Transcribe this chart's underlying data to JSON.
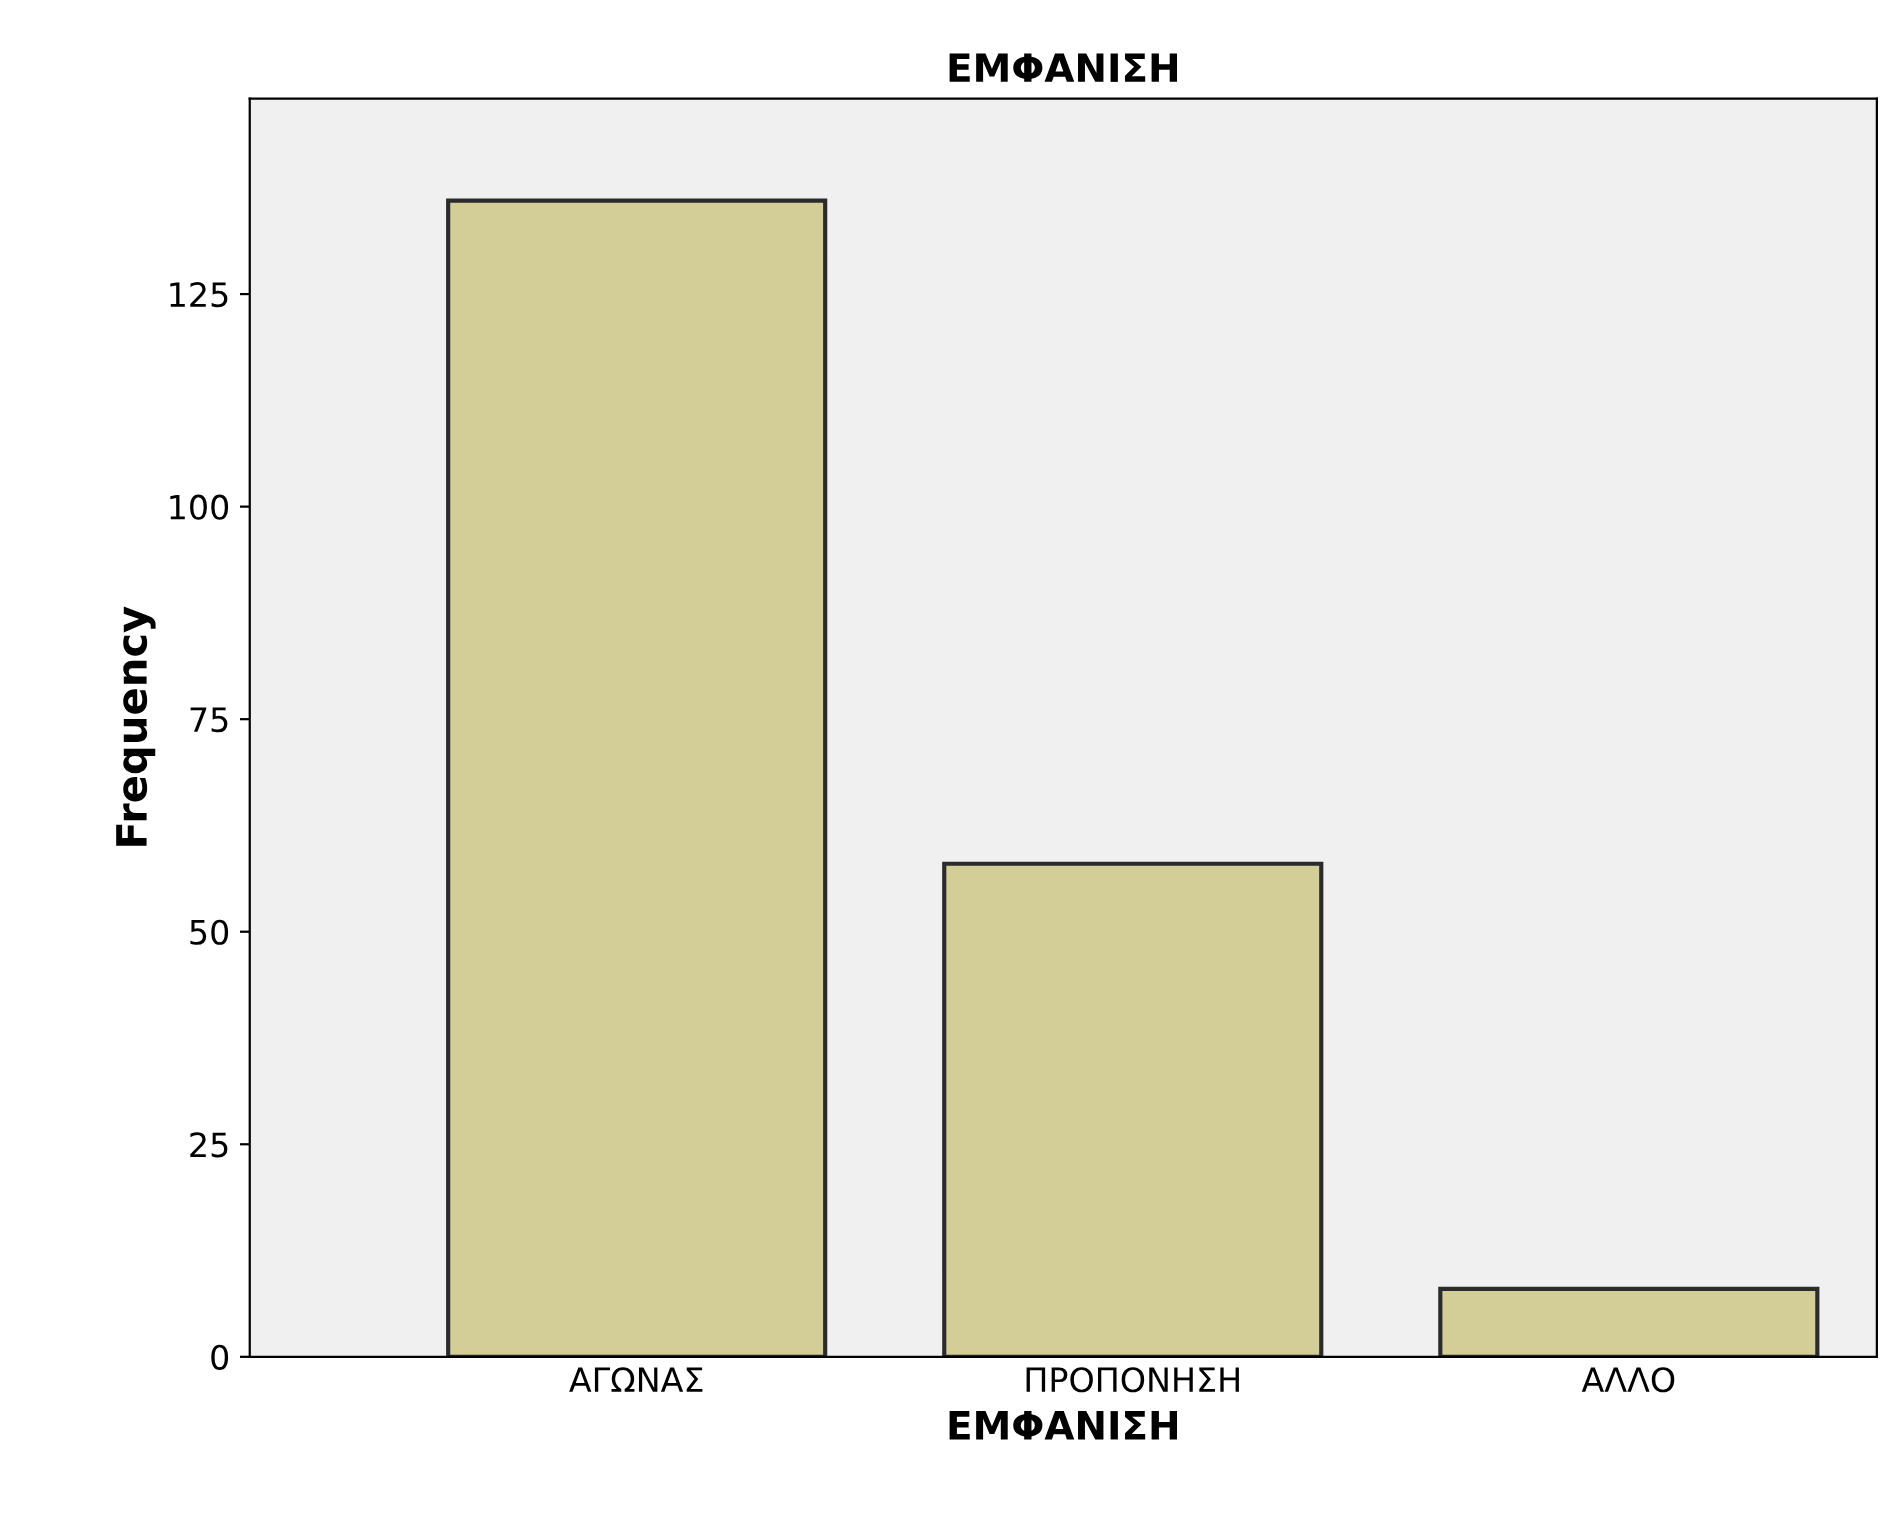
{
  "chart_data": {
    "type": "bar",
    "title": "ΕΜΦΑΝΙΣΗ",
    "xlabel": "ΕΜΦΑΝΙΣΗ",
    "ylabel": "Frequency",
    "categories": [
      "ΑΓΩΝΑΣ",
      "ΠΡΟΠΟΝΗΣΗ",
      "ΑΛΛΟ"
    ],
    "values": [
      136,
      58,
      8
    ],
    "color": "#d3ce97",
    "ylim": [
      0,
      148
    ],
    "yticks": [
      0,
      25,
      50,
      75,
      100,
      125
    ],
    "grid": false,
    "legend": false
  }
}
